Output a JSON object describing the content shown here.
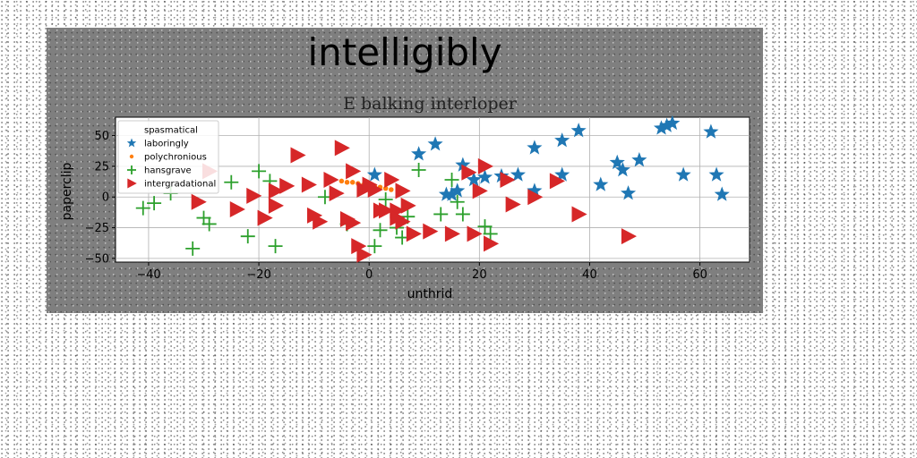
{
  "chart_data": {
    "type": "scatter",
    "suptitle": "intelligibly",
    "title": "E balking interloper",
    "xlabel": "unthrid",
    "ylabel": "paperclip",
    "xlim": [
      -46,
      69
    ],
    "ylim": [
      -53,
      65
    ],
    "xticks": [
      -40,
      -20,
      0,
      20,
      40,
      60
    ],
    "yticks": [
      -50,
      -25,
      0,
      25,
      50
    ],
    "grid": true,
    "legend_position": "upper-left",
    "series": [
      {
        "name": "spasmatical",
        "marker": "none",
        "color": "#1f77b4",
        "points": []
      },
      {
        "name": "laboringly",
        "marker": "star",
        "color": "#1f77b4",
        "points": [
          [
            1,
            18
          ],
          [
            9,
            35
          ],
          [
            12,
            43
          ],
          [
            14,
            2
          ],
          [
            15,
            2
          ],
          [
            16,
            5
          ],
          [
            17,
            26
          ],
          [
            19,
            14
          ],
          [
            21,
            16
          ],
          [
            24,
            17
          ],
          [
            27,
            18
          ],
          [
            30,
            5
          ],
          [
            30,
            40
          ],
          [
            35,
            18
          ],
          [
            35,
            46
          ],
          [
            38,
            54
          ],
          [
            42,
            10
          ],
          [
            45,
            28
          ],
          [
            46,
            22
          ],
          [
            47,
            3
          ],
          [
            49,
            30
          ],
          [
            53,
            56
          ],
          [
            54,
            58
          ],
          [
            55,
            60
          ],
          [
            57,
            18
          ],
          [
            62,
            53
          ],
          [
            63,
            18
          ],
          [
            64,
            2
          ]
        ]
      },
      {
        "name": "polychronious",
        "marker": "circle",
        "color": "#ff7f0e",
        "points": [
          [
            -5,
            13
          ],
          [
            -4,
            12
          ],
          [
            -3,
            12
          ],
          [
            -2,
            11
          ],
          [
            -1,
            10
          ],
          [
            0,
            10
          ],
          [
            1,
            9
          ],
          [
            2,
            8
          ],
          [
            3,
            7
          ],
          [
            4,
            6
          ]
        ]
      },
      {
        "name": "hansgrave",
        "marker": "plus",
        "color": "#2ca02c",
        "points": [
          [
            -41,
            -9
          ],
          [
            -39,
            -5
          ],
          [
            -36,
            3
          ],
          [
            -32,
            -42
          ],
          [
            -30,
            -17
          ],
          [
            -29,
            -22
          ],
          [
            -25,
            12
          ],
          [
            -22,
            -32
          ],
          [
            -20,
            21
          ],
          [
            -18,
            13
          ],
          [
            -17,
            -40
          ],
          [
            -8,
            0
          ],
          [
            -4,
            -22
          ],
          [
            1,
            -40
          ],
          [
            2,
            -27
          ],
          [
            3,
            -2
          ],
          [
            5,
            -25
          ],
          [
            6,
            -33
          ],
          [
            7,
            -16
          ],
          [
            9,
            22
          ],
          [
            13,
            -14
          ],
          [
            15,
            14
          ],
          [
            16,
            -4
          ],
          [
            17,
            -14
          ],
          [
            21,
            -24
          ],
          [
            22,
            -30
          ]
        ]
      },
      {
        "name": "intergradational",
        "marker": "triangle-right",
        "color": "#d62728",
        "points": [
          [
            -31,
            -4
          ],
          [
            -29,
            21
          ],
          [
            -24,
            -10
          ],
          [
            -21,
            1
          ],
          [
            -19,
            -17
          ],
          [
            -17,
            5
          ],
          [
            -17,
            -7
          ],
          [
            -15,
            9
          ],
          [
            -13,
            34
          ],
          [
            -11,
            10
          ],
          [
            -10,
            -15
          ],
          [
            -9,
            -20
          ],
          [
            -7,
            14
          ],
          [
            -6,
            3
          ],
          [
            -5,
            40
          ],
          [
            -4,
            -18
          ],
          [
            -3,
            21
          ],
          [
            -3,
            -21
          ],
          [
            -2,
            -40
          ],
          [
            -1,
            -47
          ],
          [
            -1,
            6
          ],
          [
            0,
            10
          ],
          [
            1,
            6
          ],
          [
            2,
            -11
          ],
          [
            3,
            -11
          ],
          [
            4,
            14
          ],
          [
            5,
            -11
          ],
          [
            5,
            -17
          ],
          [
            6,
            -20
          ],
          [
            6,
            5
          ],
          [
            7,
            -7
          ],
          [
            8,
            -30
          ],
          [
            11,
            -28
          ],
          [
            15,
            -30
          ],
          [
            18,
            20
          ],
          [
            19,
            -30
          ],
          [
            20,
            5
          ],
          [
            21,
            25
          ],
          [
            22,
            -38
          ],
          [
            25,
            14
          ],
          [
            26,
            -6
          ],
          [
            30,
            0
          ],
          [
            34,
            13
          ],
          [
            38,
            -14
          ],
          [
            47,
            -32
          ]
        ]
      }
    ]
  }
}
